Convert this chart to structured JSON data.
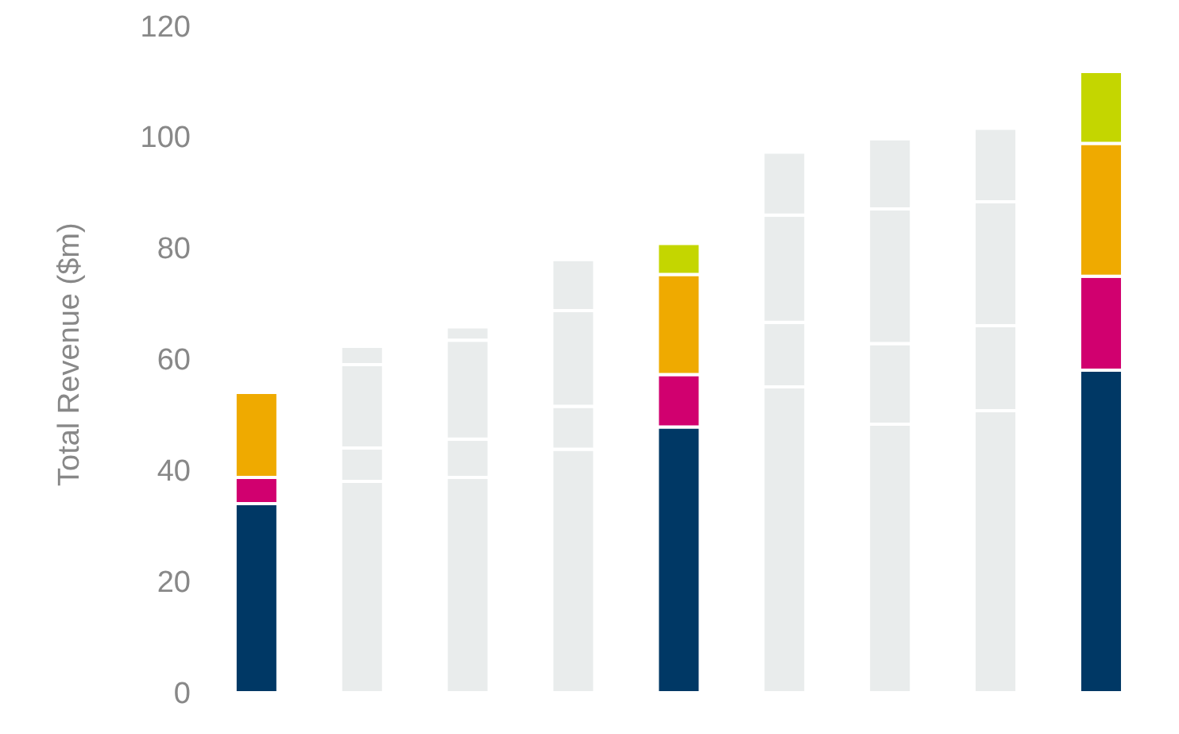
{
  "chart_data": {
    "type": "bar",
    "stacked": true,
    "ylabel": "Total Revenue ($m)",
    "categories": [
      null,
      null,
      null,
      null,
      null,
      null,
      null,
      null,
      null
    ],
    "ylim": [
      0,
      120
    ],
    "yticks": [
      0,
      20,
      40,
      60,
      80,
      100,
      120
    ],
    "grid": false,
    "legend": false,
    "tick_labels": "y",
    "series": [
      {
        "colors": [
          "#003865",
          "#e9ecec",
          "#e9ecec",
          "#e9ecec",
          "#003865",
          "#e9ecec",
          "#e9ecec",
          "#e9ecec",
          "#003865"
        ],
        "values": [
          34,
          38,
          38.7,
          43.8,
          47.8,
          55,
          48.3,
          50.7,
          58
        ]
      },
      {
        "colors": [
          "#d1006f",
          "#e9ecec",
          "#e9ecec",
          "#e9ecec",
          "#d1006f",
          "#e9ecec",
          "#e9ecec",
          "#e9ecec",
          "#d1006f"
        ],
        "values": [
          4.7,
          6,
          6.9,
          7.7,
          9.4,
          11.6,
          14.5,
          15.3,
          16.9
        ]
      },
      {
        "colors": [
          "#efaa00",
          "#e9ecec",
          "#e9ecec",
          "#e9ecec",
          "#efaa00",
          "#e9ecec",
          "#e9ecec",
          "#e9ecec",
          "#efaa00"
        ],
        "values": [
          15.3,
          15,
          17.8,
          17.2,
          18,
          19.3,
          24.2,
          22.3,
          23.9
        ]
      },
      {
        "colors": [
          "#c4d600",
          "#e9ecec",
          "#e9ecec",
          "#e9ecec",
          "#c4d600",
          "#e9ecec",
          "#e9ecec",
          "#e9ecec",
          "#c4d600"
        ],
        "values": [
          0,
          3.3,
          2.4,
          9.2,
          5.6,
          11.3,
          12.6,
          13.2,
          12.9
        ]
      }
    ]
  }
}
